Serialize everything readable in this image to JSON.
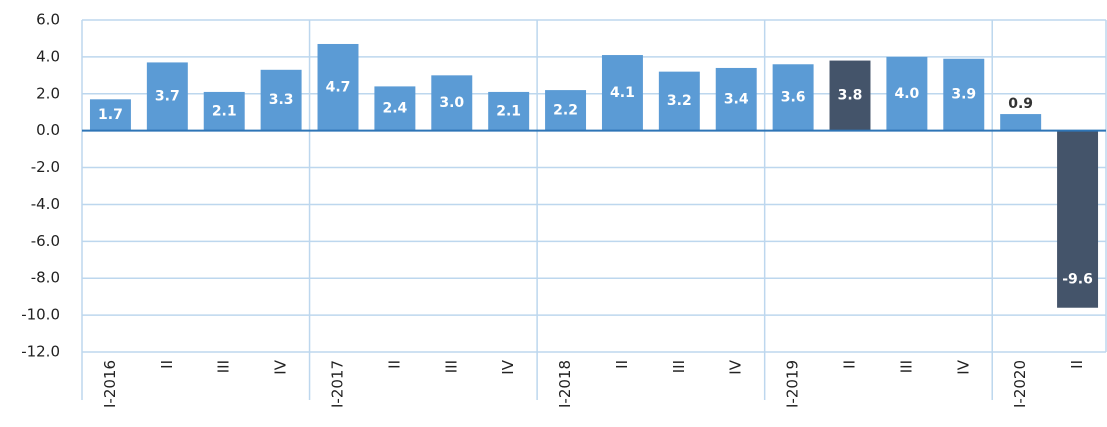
{
  "chart_data": {
    "type": "bar",
    "categories": [
      "I-2016",
      "II",
      "III",
      "IV",
      "I-2017",
      "II",
      "III",
      "IV",
      "I-2018",
      "II",
      "III",
      "IV",
      "I-2019",
      "II",
      "III",
      "IV",
      "I-2020",
      "II"
    ],
    "values": [
      1.7,
      3.7,
      2.1,
      3.3,
      4.7,
      2.4,
      3.0,
      2.1,
      2.2,
      4.1,
      3.2,
      3.4,
      3.6,
      3.8,
      4.0,
      3.9,
      0.9,
      -9.6
    ],
    "value_labels": [
      "1.7",
      "3.7",
      "2.1",
      "3.3",
      "4.7",
      "2.4",
      "3.0",
      "2.1",
      "2.2",
      "4.1",
      "3.2",
      "3.4",
      "3.6",
      "3.8",
      "4.0",
      "3.9",
      "0.9",
      "-9.6"
    ],
    "colors": [
      "#5b9bd5",
      "#5b9bd5",
      "#5b9bd5",
      "#5b9bd5",
      "#5b9bd5",
      "#5b9bd5",
      "#5b9bd5",
      "#5b9bd5",
      "#5b9bd5",
      "#5b9bd5",
      "#5b9bd5",
      "#5b9bd5",
      "#5b9bd5",
      "#44546a",
      "#5b9bd5",
      "#5b9bd5",
      "#5b9bd5",
      "#44546a"
    ],
    "ylim": [
      -12,
      6
    ],
    "yticks": [
      {
        "value": -12,
        "label": "-12.0"
      },
      {
        "value": -10,
        "label": "-10.0"
      },
      {
        "value": -8,
        "label": "-8.0"
      },
      {
        "value": -6,
        "label": "-6.0"
      },
      {
        "value": -4,
        "label": "-4.0"
      },
      {
        "value": -2,
        "label": "-2.0"
      },
      {
        "value": 0,
        "label": "0.0"
      },
      {
        "value": 2,
        "label": "2.0"
      },
      {
        "value": 4,
        "label": "4.0"
      },
      {
        "value": 6,
        "label": "6.0"
      }
    ],
    "grid": true
  }
}
